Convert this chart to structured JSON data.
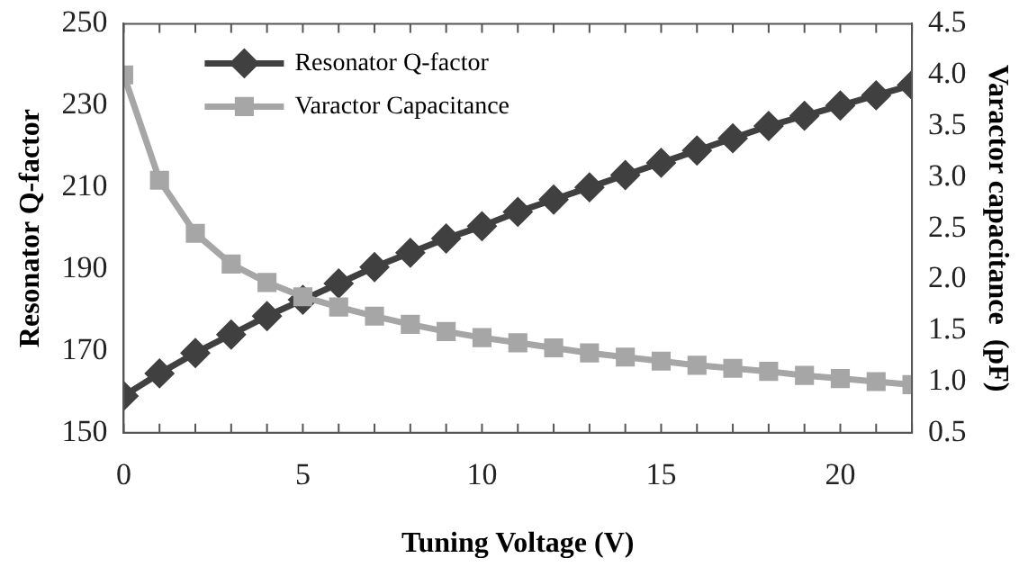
{
  "chart_data": {
    "type": "line",
    "xlabel": "Tuning Voltage (V)",
    "ylabel": "Resonator Q-factor",
    "y2label": "Varactor capacitance  (pF)",
    "x": [
      0,
      1,
      2,
      3,
      4,
      5,
      6,
      7,
      8,
      9,
      10,
      11,
      12,
      13,
      14,
      15,
      16,
      17,
      18,
      19,
      20,
      21,
      22
    ],
    "series": [
      {
        "name": "Resonator Q-factor",
        "color": "#404040",
        "marker": "diamond",
        "values": [
          159,
          164.5,
          169.5,
          174,
          178.5,
          182.5,
          186.5,
          190.5,
          194,
          197.5,
          200.5,
          204,
          207,
          210,
          213,
          216,
          219,
          222,
          225,
          227.5,
          230,
          232.5,
          235
        ]
      },
      {
        "name": "Varactor Capacitance",
        "color": "#a6a6a6",
        "marker": "square",
        "axis": "y2",
        "values": [
          4.0,
          2.97,
          2.45,
          2.15,
          1.97,
          1.83,
          1.73,
          1.64,
          1.56,
          1.49,
          1.43,
          1.38,
          1.33,
          1.28,
          1.24,
          1.2,
          1.16,
          1.13,
          1.1,
          1.06,
          1.03,
          1.0,
          0.97
        ]
      }
    ],
    "xlim": [
      0,
      22
    ],
    "xticks": [
      0,
      5,
      10,
      15,
      20
    ],
    "ylim": [
      150,
      250
    ],
    "yticks": [
      150,
      170,
      190,
      210,
      230,
      250
    ],
    "y2lim": [
      0.5,
      4.5
    ],
    "y2ticks": [
      {
        "value": 0.5,
        "label": "0.5"
      },
      {
        "value": 1,
        "label": "1.0"
      },
      {
        "value": 1.5,
        "label": "1.5"
      },
      {
        "value": 2,
        "label": "2.0"
      },
      {
        "value": 2.5,
        "label": "2.5"
      },
      {
        "value": 3,
        "label": "3.0"
      },
      {
        "value": 3.5,
        "label": "3.5"
      },
      {
        "value": 4,
        "label": "4.0"
      },
      {
        "value": 4.5,
        "label": "4.5"
      }
    ],
    "grid": false,
    "legend": "top",
    "line_style": "solid"
  }
}
